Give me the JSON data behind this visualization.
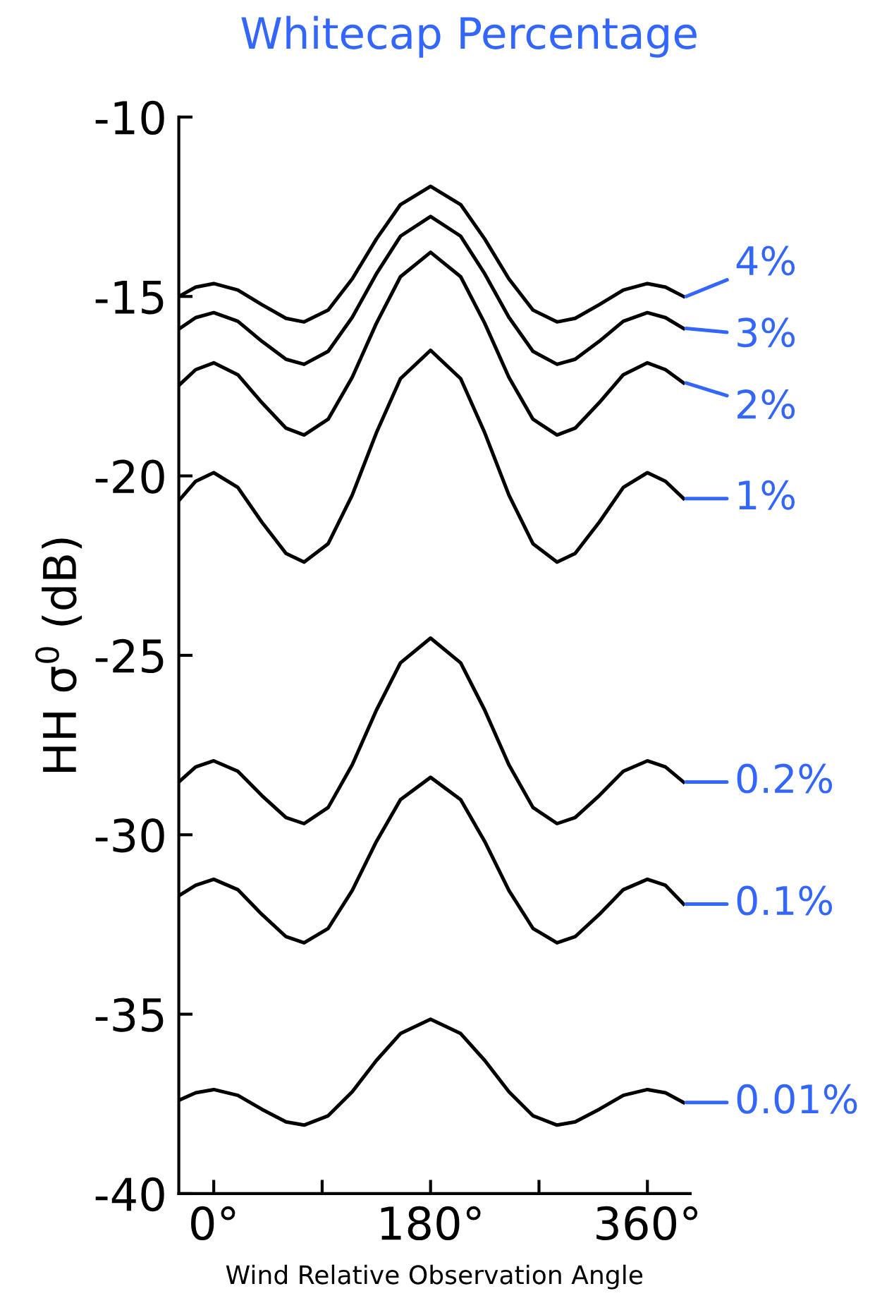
{
  "chart_data": {
    "type": "line",
    "title": "Whitecap Percentage",
    "xlabel": "Wind Relative Observation Angle",
    "ylabel": "HH σ$^{0}$ (dB)",
    "x": [
      -29,
      -15,
      0,
      20,
      40,
      60,
      75,
      95,
      115,
      135,
      155,
      180,
      205,
      225,
      245,
      265,
      285,
      300,
      320,
      340,
      360,
      375,
      390
    ],
    "series": [
      {
        "name": "4%",
        "color": "#000000",
        "values": [
          -15.0,
          -14.74,
          -14.64,
          -14.82,
          -15.23,
          -15.61,
          -15.71,
          -15.38,
          -14.51,
          -13.4,
          -12.44,
          -11.93,
          -12.44,
          -13.4,
          -14.51,
          -15.38,
          -15.71,
          -15.61,
          -15.23,
          -14.82,
          -14.64,
          -14.74,
          -15.0
        ]
      },
      {
        "name": "3%",
        "color": "#000000",
        "values": [
          -15.91,
          -15.59,
          -15.45,
          -15.69,
          -16.25,
          -16.75,
          -16.89,
          -16.53,
          -15.58,
          -14.37,
          -13.32,
          -12.77,
          -13.32,
          -14.37,
          -15.58,
          -16.53,
          -16.89,
          -16.75,
          -16.25,
          -15.69,
          -15.45,
          -15.59,
          -15.89
        ]
      },
      {
        "name": "2%",
        "color": "#000000",
        "values": [
          -17.48,
          -17.04,
          -16.85,
          -17.18,
          -17.96,
          -18.67,
          -18.86,
          -18.42,
          -17.25,
          -15.75,
          -14.45,
          -13.77,
          -14.45,
          -15.75,
          -17.25,
          -18.42,
          -18.86,
          -18.67,
          -17.96,
          -17.18,
          -16.85,
          -17.04,
          -17.41
        ]
      },
      {
        "name": "1%",
        "color": "#000000",
        "values": [
          -20.69,
          -20.15,
          -19.91,
          -20.32,
          -21.29,
          -22.16,
          -22.4,
          -21.89,
          -20.53,
          -18.8,
          -17.29,
          -16.5,
          -17.29,
          -18.8,
          -20.53,
          -21.89,
          -22.4,
          -22.16,
          -21.29,
          -20.32,
          -19.91,
          -20.15,
          -20.63
        ]
      },
      {
        "name": "0.2%",
        "color": "#000000",
        "values": [
          -28.53,
          -28.11,
          -27.94,
          -28.23,
          -28.91,
          -29.52,
          -29.69,
          -29.24,
          -28.05,
          -26.53,
          -25.21,
          -24.52,
          -25.21,
          -26.53,
          -28.05,
          -29.24,
          -29.69,
          -29.52,
          -28.91,
          -28.23,
          -27.94,
          -28.11,
          -28.53
        ]
      },
      {
        "name": "0.1%",
        "color": "#000000",
        "values": [
          -31.7,
          -31.41,
          -31.24,
          -31.53,
          -32.22,
          -32.84,
          -33.01,
          -32.61,
          -31.55,
          -30.19,
          -29.02,
          -28.4,
          -29.02,
          -30.19,
          -31.55,
          -32.61,
          -33.01,
          -32.84,
          -32.22,
          -31.53,
          -31.24,
          -31.41,
          -31.93
        ]
      },
      {
        "name": "0.01%",
        "color": "#000000",
        "values": [
          -37.4,
          -37.19,
          -37.1,
          -37.26,
          -37.65,
          -38.0,
          -38.09,
          -37.83,
          -37.16,
          -36.29,
          -35.54,
          -35.14,
          -35.54,
          -36.29,
          -37.16,
          -37.83,
          -38.09,
          -38.0,
          -37.65,
          -37.26,
          -37.1,
          -37.19,
          -37.46
        ]
      }
    ],
    "xlim": [
      -29,
      395.5
    ],
    "ylim": [
      -40,
      -10
    ],
    "xticks": [
      {
        "value": 0,
        "label": "0°"
      },
      {
        "value": 90,
        "label": null
      },
      {
        "value": 180,
        "label": "180°"
      },
      {
        "value": 270,
        "label": null
      },
      {
        "value": 360,
        "label": "360°"
      }
    ],
    "yticks": [
      -40,
      -35,
      -30,
      -25,
      -20,
      -15,
      -10
    ],
    "grid": false,
    "legend": false,
    "marker": "none",
    "line_style": "solid"
  }
}
